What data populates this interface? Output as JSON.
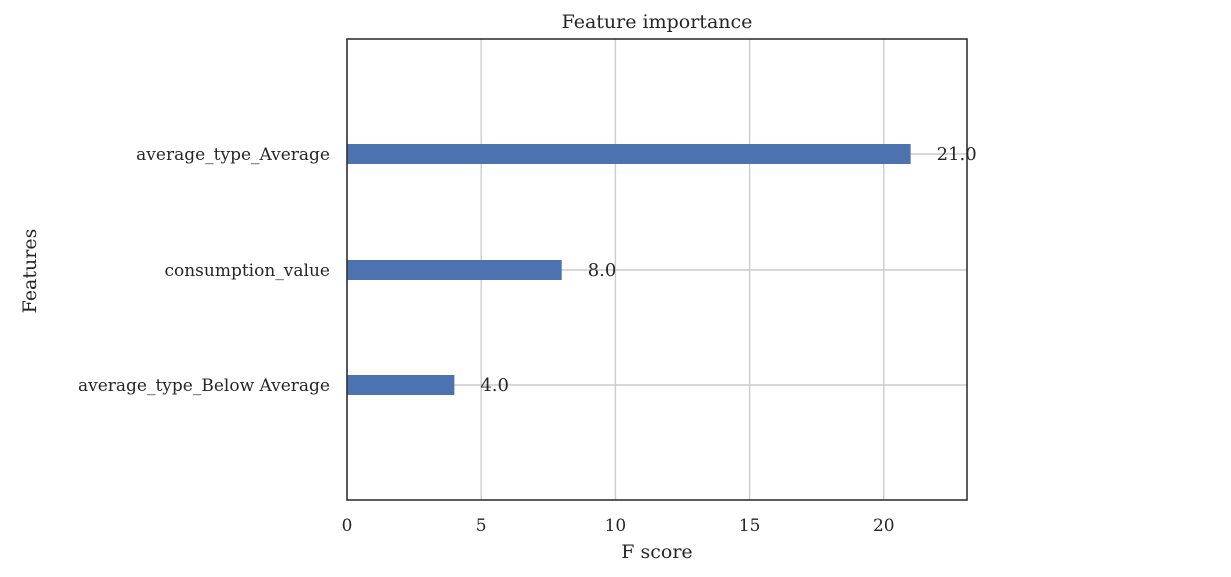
{
  "chart_data": {
    "type": "bar",
    "orientation": "horizontal",
    "title": "Feature importance",
    "xlabel": "F score",
    "ylabel": "Features",
    "categories": [
      "average_type_Average",
      "consumption_value",
      "average_type_Below Average"
    ],
    "values": [
      21,
      8,
      4
    ],
    "value_labels": [
      "21.0",
      "8.0",
      "4.0"
    ],
    "xlim": [
      0,
      23.1
    ],
    "xticks": [
      0,
      5,
      10,
      15,
      20
    ],
    "xtick_labels": [
      "0",
      "5",
      "10",
      "15",
      "20"
    ],
    "grid": true,
    "bar_color": "#4c72b0"
  }
}
